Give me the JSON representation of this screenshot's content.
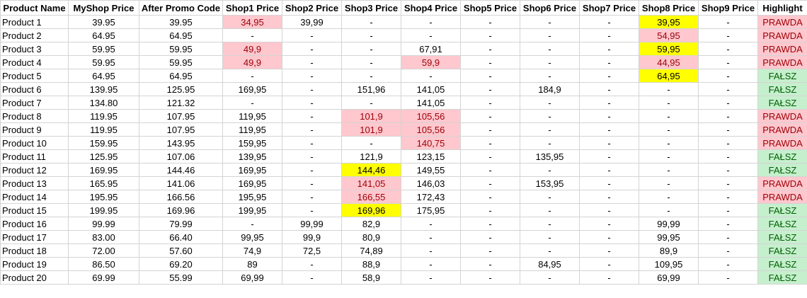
{
  "columns": [
    "Product Name",
    "MyShop Price",
    "After Promo Code",
    "Shop1 Price",
    "Shop2 Price",
    "Shop3 Price",
    "Shop4 Price",
    "Shop5 Price",
    "Shop6 Price",
    "Shop7 Price",
    "Shop8 Price",
    "Shop9 Price",
    "Highlight"
  ],
  "colors": {
    "pink_fill": "#ffc7ce",
    "pink_text": "#9c0006",
    "yellow_fill": "#ffff00",
    "green_fill": "#c6efce",
    "green_text": "#006100"
  },
  "rows": [
    {
      "cells": [
        "Product 1",
        "39.95",
        "39.95",
        "34,95",
        "39,99",
        "-",
        "-",
        "-",
        "-",
        "-",
        "39,95",
        "-",
        "PRAWDA"
      ],
      "styles": {
        "3": "pink",
        "10": "yellow"
      },
      "highlight": "true"
    },
    {
      "cells": [
        "Product 2",
        "64.95",
        "64.95",
        "-",
        "-",
        "-",
        "-",
        "-",
        "-",
        "-",
        "54,95",
        "-",
        "PRAWDA"
      ],
      "styles": {
        "10": "pink"
      },
      "highlight": "true"
    },
    {
      "cells": [
        "Product 3",
        "59.95",
        "59.95",
        "49,9",
        "-",
        "-",
        "67,91",
        "-",
        "-",
        "-",
        "59,95",
        "-",
        "PRAWDA"
      ],
      "styles": {
        "3": "pink",
        "10": "yellow"
      },
      "highlight": "true"
    },
    {
      "cells": [
        "Product 4",
        "59.95",
        "59.95",
        "49,9",
        "-",
        "-",
        "59,9",
        "-",
        "-",
        "-",
        "44,95",
        "-",
        "PRAWDA"
      ],
      "styles": {
        "3": "pink",
        "6": "pink",
        "10": "pink"
      },
      "highlight": "true"
    },
    {
      "cells": [
        "Product 5",
        "64.95",
        "64.95",
        "-",
        "-",
        "-",
        "-",
        "-",
        "-",
        "-",
        "64,95",
        "-",
        "FAŁSZ"
      ],
      "styles": {
        "10": "yellow"
      },
      "highlight": "false"
    },
    {
      "cells": [
        "Product 6",
        "139.95",
        "125.95",
        "169,95",
        "-",
        "151,96",
        "141,05",
        "-",
        "184,9",
        "-",
        "-",
        "-",
        "FAŁSZ"
      ],
      "styles": {},
      "highlight": "false"
    },
    {
      "cells": [
        "Product 7",
        "134.80",
        "121.32",
        "-",
        "-",
        "-",
        "141,05",
        "-",
        "-",
        "-",
        "-",
        "-",
        "FAŁSZ"
      ],
      "styles": {},
      "highlight": "false"
    },
    {
      "cells": [
        "Product 8",
        "119.95",
        "107.95",
        "119,95",
        "-",
        "101,9",
        "105,56",
        "-",
        "-",
        "-",
        "-",
        "-",
        "PRAWDA"
      ],
      "styles": {
        "5": "pink",
        "6": "pink"
      },
      "highlight": "true"
    },
    {
      "cells": [
        "Product 9",
        "119.95",
        "107.95",
        "119,95",
        "-",
        "101,9",
        "105,56",
        "-",
        "-",
        "-",
        "-",
        "-",
        "PRAWDA"
      ],
      "styles": {
        "5": "pink",
        "6": "pink"
      },
      "highlight": "true"
    },
    {
      "cells": [
        "Product 10",
        "159.95",
        "143.95",
        "159,95",
        "-",
        "-",
        "140,75",
        "-",
        "-",
        "-",
        "-",
        "-",
        "PRAWDA"
      ],
      "styles": {
        "6": "pink"
      },
      "highlight": "true"
    },
    {
      "cells": [
        "Product 11",
        "125.95",
        "107.06",
        "139,95",
        "-",
        "121,9",
        "123,15",
        "-",
        "135,95",
        "-",
        "-",
        "-",
        "FAŁSZ"
      ],
      "styles": {},
      "highlight": "false"
    },
    {
      "cells": [
        "Product 12",
        "169.95",
        "144.46",
        "169,95",
        "-",
        "144,46",
        "149,55",
        "-",
        "-",
        "-",
        "-",
        "-",
        "FAŁSZ"
      ],
      "styles": {
        "5": "yellow"
      },
      "highlight": "false"
    },
    {
      "cells": [
        "Product 13",
        "165.95",
        "141.06",
        "169,95",
        "-",
        "141,05",
        "146,03",
        "-",
        "153,95",
        "-",
        "-",
        "-",
        "PRAWDA"
      ],
      "styles": {
        "5": "pink"
      },
      "highlight": "true"
    },
    {
      "cells": [
        "Product 14",
        "195.95",
        "166.56",
        "195,95",
        "-",
        "166,55",
        "172,43",
        "-",
        "-",
        "-",
        "-",
        "-",
        "PRAWDA"
      ],
      "styles": {
        "5": "pink"
      },
      "highlight": "true"
    },
    {
      "cells": [
        "Product 15",
        "199.95",
        "169.96",
        "199,95",
        "-",
        "169,96",
        "175,95",
        "-",
        "-",
        "-",
        "-",
        "-",
        "FAŁSZ"
      ],
      "styles": {
        "5": "yellow"
      },
      "highlight": "false"
    },
    {
      "cells": [
        "Product 16",
        "99.99",
        "79.99",
        "-",
        "99,99",
        "82,9",
        "-",
        "-",
        "-",
        "-",
        "99,99",
        "-",
        "FAŁSZ"
      ],
      "styles": {},
      "highlight": "false"
    },
    {
      "cells": [
        "Product 17",
        "83.00",
        "66.40",
        "99,95",
        "99,9",
        "80,9",
        "-",
        "-",
        "-",
        "-",
        "99,95",
        "-",
        "FAŁSZ"
      ],
      "styles": {},
      "highlight": "false"
    },
    {
      "cells": [
        "Product 18",
        "72.00",
        "57.60",
        "74,9",
        "72,5",
        "74,89",
        "-",
        "-",
        "-",
        "-",
        "89,9",
        "-",
        "FAŁSZ"
      ],
      "styles": {},
      "highlight": "false"
    },
    {
      "cells": [
        "Product 19",
        "86.50",
        "69.20",
        "89",
        "-",
        "88,9",
        "-",
        "-",
        "84,95",
        "-",
        "109,95",
        "-",
        "FAŁSZ"
      ],
      "styles": {},
      "highlight": "false"
    },
    {
      "cells": [
        "Product 20",
        "69.99",
        "55.99",
        "69,99",
        "-",
        "58,9",
        "-",
        "-",
        "-",
        "-",
        "69,99",
        "-",
        "FAŁSZ"
      ],
      "styles": {},
      "highlight": "false"
    }
  ]
}
